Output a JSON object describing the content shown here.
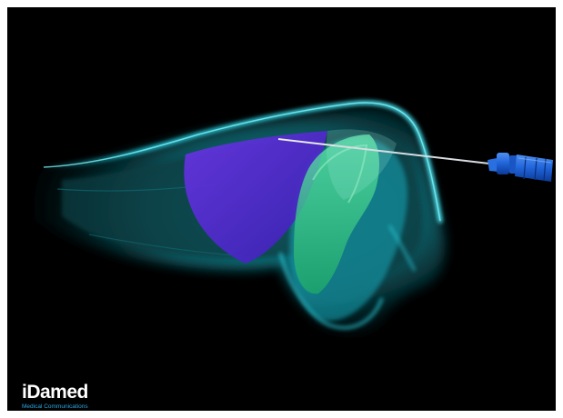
{
  "image": {
    "background": "#000000",
    "subject": [
      "nose-soft-tissue-silhouette",
      "purple-filler-region",
      "green-filler-region",
      "injection-needle-syringe"
    ],
    "colors": {
      "tissue_cyan": "#22c9dc",
      "tissue_dark_teal": "#0a4a50",
      "filler_purple": "#5a2fd6",
      "filler_green": "#2fd58a",
      "syringe_blue": "#1f63d8",
      "needle_silver": "#d8dde2"
    }
  },
  "logo": {
    "wordmark": "iDamed",
    "tagline": "Medical Communications",
    "tagline_color": "#2aa7e0"
  }
}
